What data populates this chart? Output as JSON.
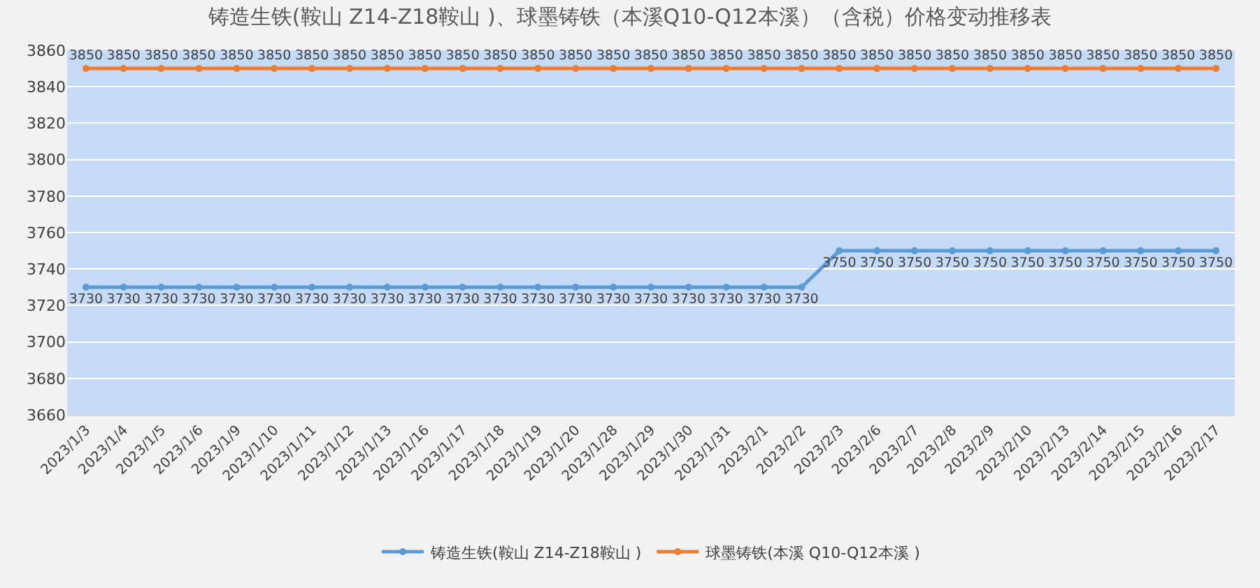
{
  "chart_data": {
    "type": "line",
    "title": "铸造生铁(鞍山 Z14-Z18鞍山 )、球墨铸铁（本溪Q10-Q12本溪）（含税）价格变动推移表",
    "categories": [
      "2023/1/3",
      "2023/1/4",
      "2023/1/5",
      "2023/1/6",
      "2023/1/9",
      "2023/1/10",
      "2023/1/11",
      "2023/1/12",
      "2023/1/13",
      "2023/1/16",
      "2023/1/17",
      "2023/1/18",
      "2023/1/19",
      "2023/1/20",
      "2023/1/28",
      "2023/1/29",
      "2023/1/30",
      "2023/1/31",
      "2023/2/1",
      "2023/2/2",
      "2023/2/3",
      "2023/2/6",
      "2023/2/7",
      "2023/2/8",
      "2023/2/9",
      "2023/2/10",
      "2023/2/13",
      "2023/2/14",
      "2023/2/15",
      "2023/2/16",
      "2023/2/17"
    ],
    "series": [
      {
        "name": "铸造生铁(鞍山 Z14-Z18鞍山 )",
        "color": "#5b9bd5",
        "values": [
          3730,
          3730,
          3730,
          3730,
          3730,
          3730,
          3730,
          3730,
          3730,
          3730,
          3730,
          3730,
          3730,
          3730,
          3730,
          3730,
          3730,
          3730,
          3730,
          3730,
          3750,
          3750,
          3750,
          3750,
          3750,
          3750,
          3750,
          3750,
          3750,
          3750,
          3750
        ]
      },
      {
        "name": "球墨铸铁(本溪 Q10-Q12本溪 )",
        "color": "#ed7d31",
        "values": [
          3850,
          3850,
          3850,
          3850,
          3850,
          3850,
          3850,
          3850,
          3850,
          3850,
          3850,
          3850,
          3850,
          3850,
          3850,
          3850,
          3850,
          3850,
          3850,
          3850,
          3850,
          3850,
          3850,
          3850,
          3850,
          3850,
          3850,
          3850,
          3850,
          3850,
          3850
        ]
      }
    ],
    "ylim": [
      3660,
      3860
    ],
    "yticks": [
      3660,
      3680,
      3700,
      3720,
      3740,
      3760,
      3780,
      3800,
      3820,
      3840,
      3860
    ],
    "grid": "y",
    "legend": "bottom",
    "marker": "circle",
    "line_style": "solid",
    "data_labels": true
  }
}
